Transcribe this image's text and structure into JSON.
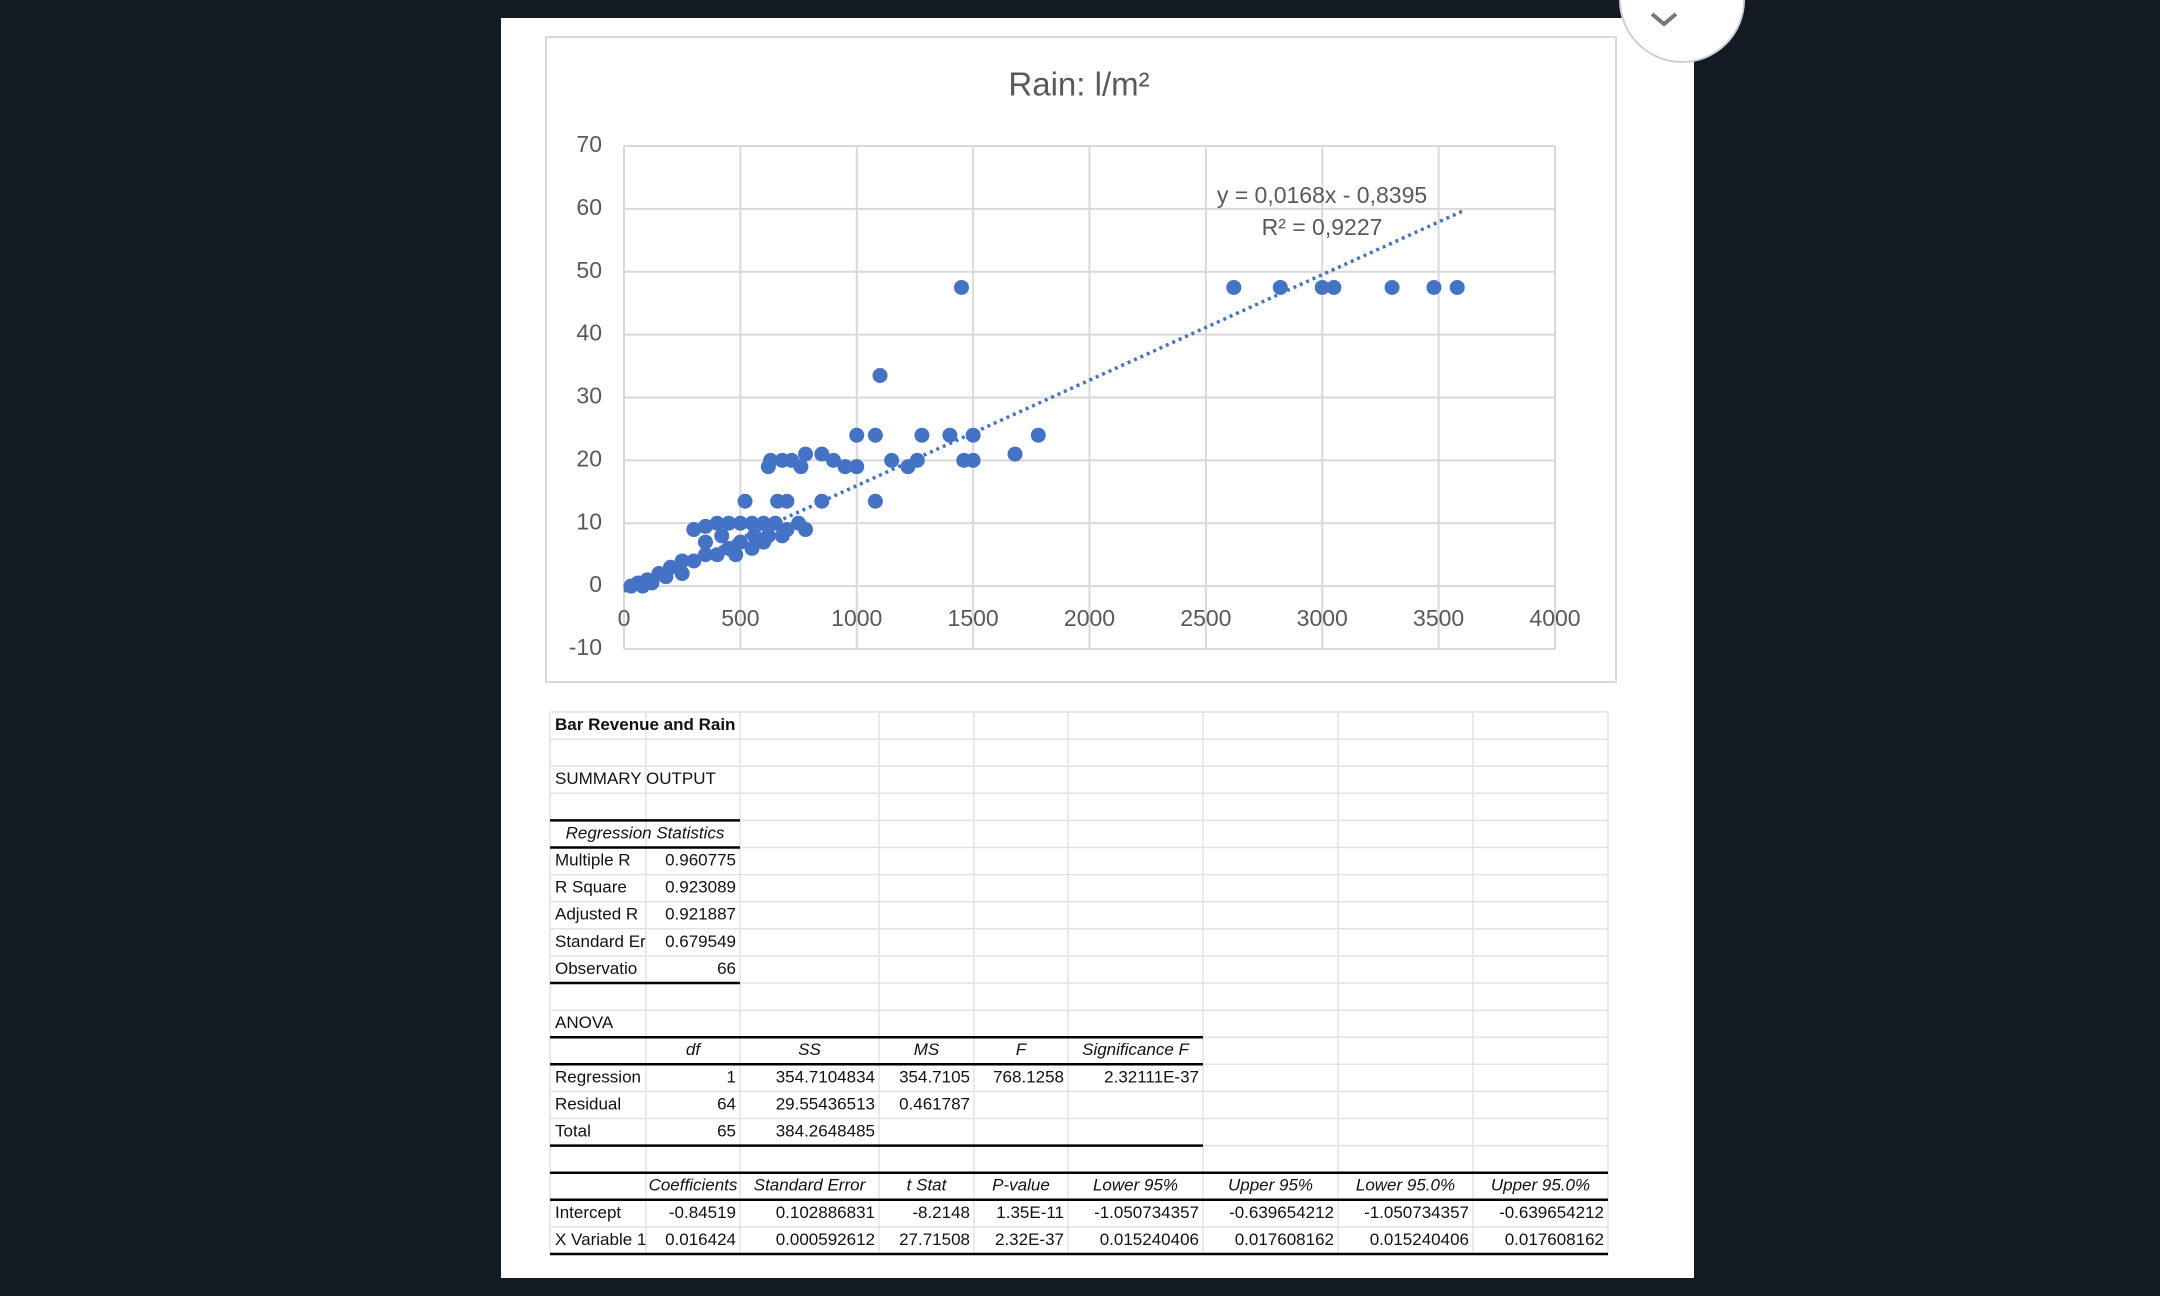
{
  "chart_data": {
    "type": "scatter",
    "title": "Rain: l/m²",
    "x": [
      1450,
      2620,
      2820,
      3000,
      3050,
      3300,
      3480,
      3580,
      1100,
      1000,
      1080,
      1280,
      1400,
      1500,
      1780,
      1680,
      630,
      680,
      720,
      780,
      850,
      900,
      950,
      1000,
      1150,
      1220,
      1260,
      1460,
      1500,
      620,
      760,
      520,
      660,
      700,
      850,
      1080,
      300,
      350,
      400,
      450,
      500,
      550,
      600,
      650,
      700,
      750,
      780,
      560,
      620,
      680,
      500,
      450,
      400,
      350,
      300,
      250,
      200,
      150,
      100,
      60,
      30,
      350,
      420,
      480,
      550,
      600,
      250,
      180,
      120,
      80
    ],
    "values": [
      47.5,
      47.5,
      47.5,
      47.5,
      47.5,
      47.5,
      47.5,
      47.5,
      33.5,
      24,
      24,
      24,
      24,
      24,
      24,
      21,
      20,
      20,
      20,
      21,
      21,
      20,
      19,
      19,
      20,
      19,
      20,
      20,
      20,
      19,
      19,
      13.5,
      13.5,
      13.5,
      13.5,
      13.5,
      9,
      9.5,
      10,
      10,
      10,
      10,
      10,
      10,
      9,
      10,
      9,
      8,
      8,
      8,
      7,
      6,
      5,
      5,
      4,
      4,
      3,
      2,
      1,
      0.5,
      0,
      7,
      8,
      5,
      6,
      7,
      2,
      1.5,
      0.5,
      0
    ],
    "color": "#4472c4",
    "xlim": [
      0,
      4000
    ],
    "ylim": [
      -10,
      70
    ],
    "xticks": [
      0,
      500,
      1000,
      1500,
      2000,
      2500,
      3000,
      3500,
      4000
    ],
    "yticks": [
      -10,
      0,
      10,
      20,
      30,
      40,
      50,
      60,
      70
    ],
    "grid": true,
    "trendline": {
      "x": [
        0,
        3600
      ],
      "y": [
        -0.8,
        59.6
      ],
      "color": "#4472c4"
    },
    "annotations": [
      "y = 0,0168x - 0,8395",
      "R² = 0,9227"
    ]
  },
  "table": {
    "title": "Bar Revenue and Rain",
    "summary": "SUMMARY OUTPUT",
    "regression_statistics": {
      "header": "Regression Statistics",
      "rows": [
        [
          "Multiple R",
          "0.960775"
        ],
        [
          "R Square",
          "0.923089"
        ],
        [
          "Adjusted R",
          "0.921887"
        ],
        [
          "Standard Er",
          "0.679549"
        ],
        [
          "Observatio",
          "66"
        ]
      ]
    },
    "anova": {
      "title": "ANOVA",
      "header": [
        "df",
        "SS",
        "MS",
        "F",
        "Significance F"
      ],
      "rows": [
        [
          "Regression",
          "1",
          "354.7104834",
          "354.7105",
          "768.1258",
          "2.32111E-37"
        ],
        [
          "Residual",
          "64",
          "29.55436513",
          "0.461787"
        ],
        [
          "Total",
          "65",
          "384.2648485"
        ]
      ]
    },
    "coefficients": {
      "header": [
        "Coefficients",
        "Standard Error",
        "t Stat",
        "P-value",
        "Lower 95%",
        "Upper 95%",
        "Lower 95.0%",
        "Upper 95.0%"
      ],
      "rows": [
        [
          "Intercept",
          "-0.84519",
          "0.102886831",
          "-8.2148",
          "1.35E-11",
          "-1.050734357",
          "-0.639654212",
          "-1.050734357",
          "-0.639654212"
        ],
        [
          "X Variable 1",
          "0.016424",
          "0.000592612",
          "27.71508",
          "2.32E-37",
          "0.015240406",
          "0.017608162",
          "0.015240406",
          "0.017608162"
        ]
      ]
    }
  }
}
